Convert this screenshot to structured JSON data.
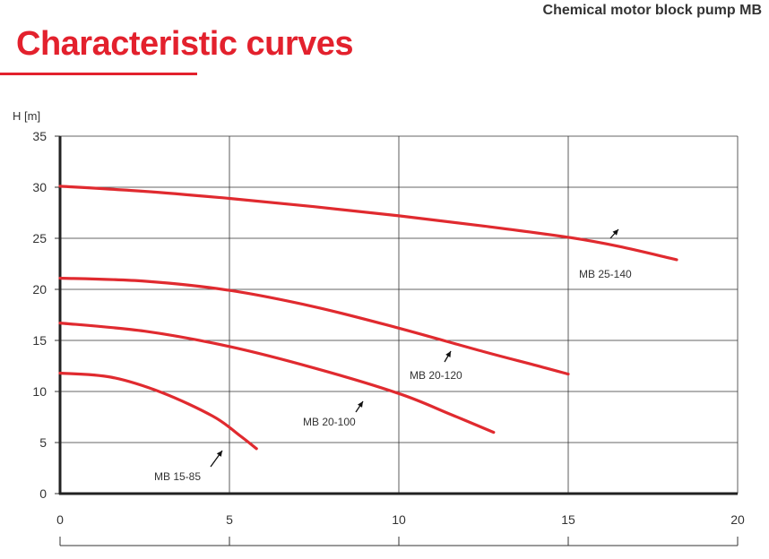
{
  "header": {
    "product": "Chemical motor block pump MB",
    "title": "Characteristic curves"
  },
  "colors": {
    "accent": "#e3212d",
    "curve": "#e02a2f",
    "grid": "#333333",
    "text": "#333333"
  },
  "chart_data": {
    "type": "line",
    "title": "",
    "xlabel": "",
    "ylabel": "H [m]",
    "xlim": [
      0,
      20
    ],
    "ylim": [
      0,
      35
    ],
    "xticks": [
      0,
      5,
      10,
      15,
      20
    ],
    "yticks": [
      0,
      5,
      10,
      15,
      20,
      25,
      30,
      35
    ],
    "grid": true,
    "series": [
      {
        "name": "MB 25-140",
        "points": [
          [
            0,
            30.1
          ],
          [
            2.5,
            29.6
          ],
          [
            5,
            28.9
          ],
          [
            7.5,
            28.1
          ],
          [
            10,
            27.2
          ],
          [
            12.5,
            26.2
          ],
          [
            15,
            25.1
          ],
          [
            16.5,
            24.2
          ],
          [
            18.2,
            22.9
          ]
        ]
      },
      {
        "name": "MB 20-120",
        "points": [
          [
            0,
            21.1
          ],
          [
            2.5,
            20.8
          ],
          [
            5,
            19.9
          ],
          [
            7.5,
            18.3
          ],
          [
            10,
            16.2
          ],
          [
            12.5,
            13.9
          ],
          [
            14,
            12.6
          ],
          [
            15,
            11.7
          ]
        ]
      },
      {
        "name": "MB 20-100",
        "points": [
          [
            0,
            16.7
          ],
          [
            2.5,
            15.9
          ],
          [
            5,
            14.4
          ],
          [
            7.5,
            12.3
          ],
          [
            10,
            9.8
          ],
          [
            11.5,
            7.8
          ],
          [
            12.8,
            6.0
          ]
        ]
      },
      {
        "name": "MB 15-85",
        "points": [
          [
            0,
            11.8
          ],
          [
            1.5,
            11.4
          ],
          [
            3,
            9.9
          ],
          [
            4.5,
            7.6
          ],
          [
            5.3,
            5.7
          ],
          [
            5.8,
            4.4
          ]
        ]
      }
    ]
  }
}
